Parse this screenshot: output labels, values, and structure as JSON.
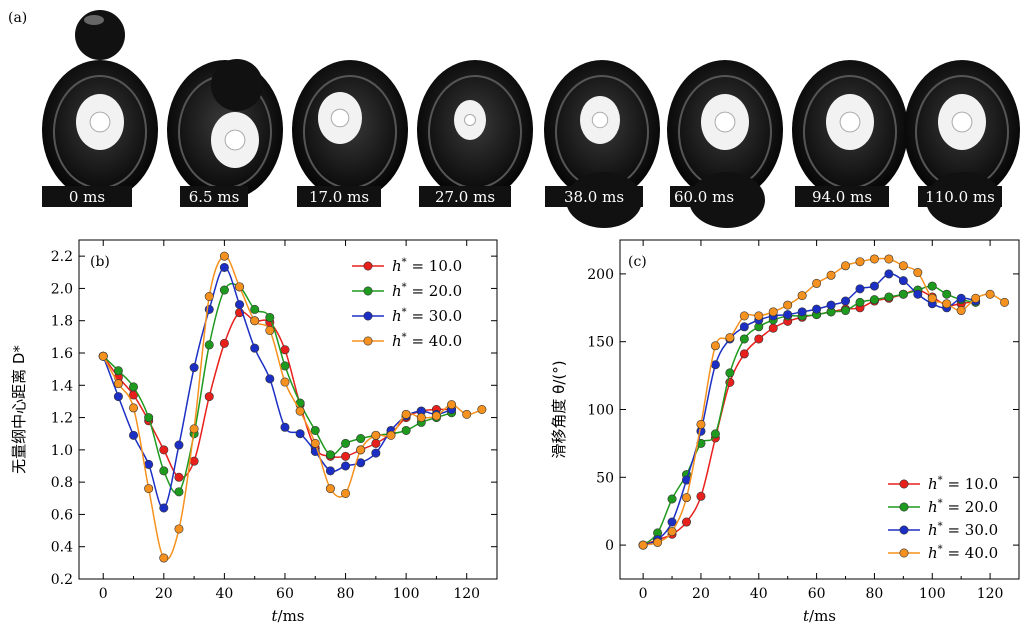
{
  "panel_a": {
    "label": "(a)",
    "frames": [
      "0 ms",
      "6.5 ms",
      "17.0 ms",
      "27.0 ms",
      "38.0 ms",
      "60.0 ms",
      "94.0 ms",
      "110.0 ms"
    ]
  },
  "colors": {
    "series": [
      "#e8201c",
      "#1e9a1e",
      "#1c2fc4",
      "#f5911e"
    ]
  },
  "chart_data": [
    {
      "panel": "(b)",
      "type": "line",
      "xlabel": "t/ms",
      "ylabel": "无量纲中心距离 D*",
      "xlim": [
        -8,
        130
      ],
      "ylim": [
        0.2,
        2.3
      ],
      "xticks": [
        0,
        20,
        40,
        60,
        80,
        100,
        120
      ],
      "yticks": [
        0.2,
        0.4,
        0.6,
        0.8,
        1.0,
        1.2,
        1.4,
        1.6,
        1.8,
        2.0,
        2.2
      ],
      "legend_position": "top-right",
      "series": [
        {
          "name": "h* = 10.0",
          "x": [
            0,
            5,
            10,
            15,
            20,
            25,
            30,
            35,
            40,
            45,
            50,
            55,
            60,
            65,
            70,
            75,
            80,
            85,
            90,
            95,
            100,
            105,
            110,
            115
          ],
          "y": [
            1.58,
            1.45,
            1.34,
            1.18,
            1.0,
            0.83,
            0.93,
            1.33,
            1.66,
            1.85,
            1.8,
            1.79,
            1.62,
            1.28,
            1.01,
            0.96,
            0.96,
            1.0,
            1.04,
            1.1,
            1.2,
            1.24,
            1.25,
            1.25
          ]
        },
        {
          "name": "h* = 20.0",
          "x": [
            0,
            5,
            10,
            15,
            20,
            25,
            30,
            35,
            40,
            45,
            50,
            55,
            60,
            65,
            70,
            75,
            80,
            85,
            90,
            95,
            100,
            105,
            110,
            115
          ],
          "y": [
            1.58,
            1.49,
            1.39,
            1.2,
            0.87,
            0.74,
            1.1,
            1.65,
            1.99,
            2.01,
            1.87,
            1.82,
            1.52,
            1.29,
            1.12,
            0.97,
            1.04,
            1.07,
            1.09,
            1.1,
            1.12,
            1.17,
            1.2,
            1.23
          ]
        },
        {
          "name": "h* = 30.0",
          "x": [
            0,
            5,
            10,
            15,
            20,
            25,
            30,
            35,
            40,
            45,
            50,
            55,
            60,
            65,
            70,
            75,
            80,
            85,
            90,
            95,
            100,
            105,
            110,
            115
          ],
          "y": [
            1.58,
            1.33,
            1.09,
            0.91,
            0.64,
            1.03,
            1.51,
            1.87,
            2.13,
            1.9,
            1.63,
            1.44,
            1.14,
            1.1,
            0.99,
            0.87,
            0.9,
            0.92,
            0.98,
            1.12,
            1.21,
            1.24,
            1.22,
            1.25
          ]
        },
        {
          "name": "h* = 40.0",
          "x": [
            0,
            5,
            10,
            15,
            20,
            25,
            30,
            35,
            40,
            45,
            50,
            55,
            60,
            65,
            70,
            75,
            80,
            85,
            90,
            95,
            100,
            105,
            110,
            115,
            120,
            125
          ],
          "y": [
            1.58,
            1.41,
            1.26,
            0.76,
            0.33,
            0.51,
            1.13,
            1.95,
            2.2,
            2.01,
            1.8,
            1.74,
            1.42,
            1.24,
            1.04,
            0.76,
            0.73,
            1.0,
            1.09,
            1.09,
            1.22,
            1.2,
            1.21,
            1.28,
            1.22,
            1.25
          ]
        }
      ]
    },
    {
      "panel": "(c)",
      "type": "line",
      "xlabel": "t/ms",
      "ylabel": "滑移角度 θ/(°)",
      "xlim": [
        -8,
        130
      ],
      "ylim": [
        -25,
        225
      ],
      "xticks": [
        0,
        20,
        40,
        60,
        80,
        100,
        120
      ],
      "yticks": [
        0,
        50,
        100,
        150,
        200
      ],
      "legend_position": "bottom-right",
      "series": [
        {
          "name": "h* = 10.0",
          "x": [
            0,
            5,
            10,
            15,
            20,
            25,
            30,
            35,
            40,
            45,
            50,
            55,
            60,
            65,
            70,
            75,
            80,
            85,
            90,
            95,
            100,
            105,
            110,
            115
          ],
          "y": [
            0,
            4,
            8,
            17,
            36,
            79,
            120,
            141,
            152,
            160,
            165,
            168,
            170,
            172,
            174,
            175,
            180,
            182,
            185,
            188,
            183,
            177,
            178,
            180
          ]
        },
        {
          "name": "h* = 20.0",
          "x": [
            0,
            5,
            10,
            15,
            20,
            25,
            30,
            35,
            40,
            45,
            50,
            55,
            60,
            65,
            70,
            75,
            80,
            85,
            90,
            95,
            100,
            105,
            110,
            115
          ],
          "y": [
            0,
            9,
            34,
            52,
            75,
            82,
            127,
            152,
            161,
            166,
            169,
            169,
            170,
            172,
            173,
            179,
            181,
            183,
            185,
            188,
            191,
            185,
            181,
            179
          ]
        },
        {
          "name": "h* = 30.0",
          "x": [
            0,
            5,
            10,
            15,
            20,
            25,
            30,
            35,
            40,
            45,
            50,
            55,
            60,
            65,
            70,
            75,
            80,
            85,
            90,
            95,
            100,
            105,
            110,
            115
          ],
          "y": [
            0,
            4,
            17,
            48,
            84,
            133,
            152,
            161,
            166,
            169,
            170,
            172,
            174,
            177,
            180,
            189,
            191,
            200,
            195,
            185,
            178,
            175,
            182,
            180
          ]
        },
        {
          "name": "h* = 40.0",
          "x": [
            0,
            5,
            10,
            15,
            20,
            25,
            30,
            35,
            40,
            45,
            50,
            55,
            60,
            65,
            70,
            75,
            80,
            85,
            90,
            95,
            100,
            105,
            110,
            115,
            120,
            125
          ],
          "y": [
            0,
            2,
            10,
            35,
            89,
            147,
            153,
            169,
            169,
            172,
            177,
            184,
            193,
            199,
            206,
            209,
            211,
            211,
            206,
            201,
            182,
            178,
            173,
            182,
            185,
            179
          ]
        }
      ]
    }
  ]
}
